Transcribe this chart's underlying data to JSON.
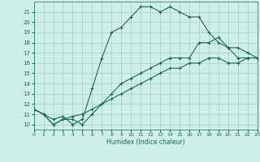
{
  "title": "",
  "xlabel": "Humidex (Indice chaleur)",
  "ylabel": "",
  "xlim": [
    0,
    23
  ],
  "ylim": [
    9.5,
    22
  ],
  "yticks": [
    10,
    11,
    12,
    13,
    14,
    15,
    16,
    17,
    18,
    19,
    20,
    21
  ],
  "xticks": [
    0,
    1,
    2,
    3,
    4,
    5,
    6,
    7,
    8,
    9,
    10,
    11,
    12,
    13,
    14,
    15,
    16,
    17,
    18,
    19,
    20,
    21,
    22,
    23
  ],
  "bg_color": "#ceeee8",
  "line_color": "#1a6b5a",
  "grid_color": "#9ecfc7",
  "line1_x": [
    0,
    1,
    2,
    3,
    4,
    5,
    6,
    7,
    8,
    9,
    10,
    11,
    12,
    13,
    14,
    15,
    16,
    17,
    18,
    19,
    20,
    21,
    22,
    23
  ],
  "line1_y": [
    11.5,
    11.0,
    10.5,
    10.8,
    10.0,
    10.5,
    13.5,
    16.5,
    19.0,
    19.5,
    20.5,
    21.5,
    21.5,
    21.0,
    21.5,
    21.0,
    20.5,
    20.5,
    19.0,
    18.0,
    17.5,
    16.5,
    16.5,
    16.5
  ],
  "line2_x": [
    0,
    1,
    2,
    3,
    4,
    5,
    6,
    7,
    8,
    9,
    10,
    11,
    12,
    13,
    14,
    15,
    16,
    17,
    18,
    19,
    20,
    21,
    22,
    23
  ],
  "line2_y": [
    11.5,
    11.0,
    10.0,
    10.5,
    10.5,
    10.0,
    11.0,
    12.0,
    13.0,
    14.0,
    14.5,
    15.0,
    15.5,
    16.0,
    16.5,
    16.5,
    16.5,
    18.0,
    18.0,
    18.5,
    17.5,
    17.5,
    17.0,
    16.5
  ],
  "line3_x": [
    0,
    1,
    2,
    3,
    4,
    5,
    6,
    7,
    8,
    9,
    10,
    11,
    12,
    13,
    14,
    15,
    16,
    17,
    18,
    19,
    20,
    21,
    22,
    23
  ],
  "line3_y": [
    11.5,
    11.0,
    10.0,
    10.5,
    10.8,
    11.0,
    11.5,
    12.0,
    12.5,
    13.0,
    13.5,
    14.0,
    14.5,
    15.0,
    15.5,
    15.5,
    16.0,
    16.0,
    16.5,
    16.5,
    16.0,
    16.0,
    16.5,
    16.5
  ]
}
